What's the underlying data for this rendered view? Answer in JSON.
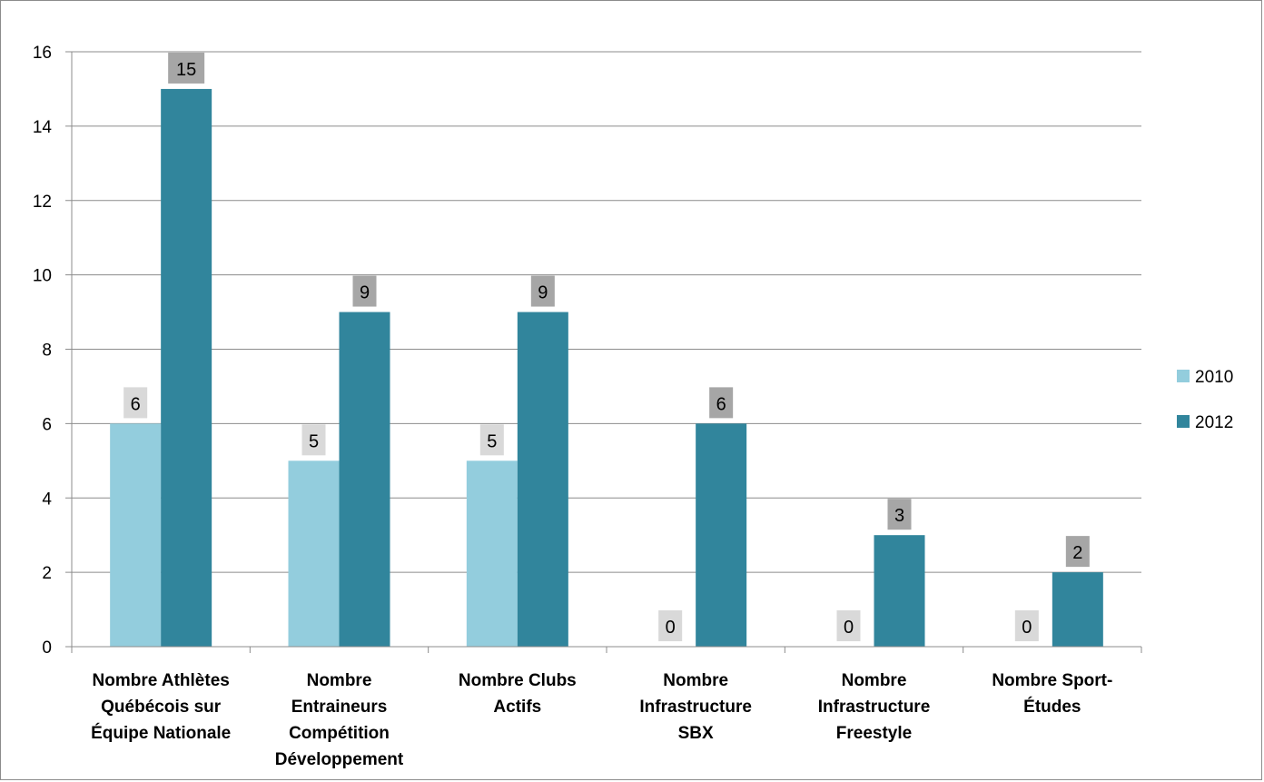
{
  "chart_data": {
    "type": "bar",
    "categories": [
      [
        "Nombre Athlètes",
        "Québécois sur",
        "Équipe Nationale"
      ],
      [
        "Nombre",
        "Entraineurs",
        "Compétition",
        "Développement"
      ],
      [
        "Nombre Clubs",
        "Actifs"
      ],
      [
        "Nombre",
        "Infrastructure",
        "SBX"
      ],
      [
        "Nombre",
        "Infrastructure",
        "Freestyle"
      ],
      [
        "Nombre Sport-",
        "Études"
      ]
    ],
    "series": [
      {
        "name": "2010",
        "values": [
          6,
          5,
          5,
          0,
          0,
          0
        ],
        "color": "#93cddd",
        "label_bg": "#d9d9d9"
      },
      {
        "name": "2012",
        "values": [
          15,
          9,
          9,
          6,
          3,
          2
        ],
        "color": "#31859c",
        "label_bg": "#a6a6a6"
      }
    ],
    "ylim": [
      0,
      16
    ],
    "yticks": [
      "0",
      "2",
      "4",
      "6",
      "8",
      "10",
      "12",
      "14",
      "16"
    ],
    "grid": true,
    "legend": "right"
  }
}
